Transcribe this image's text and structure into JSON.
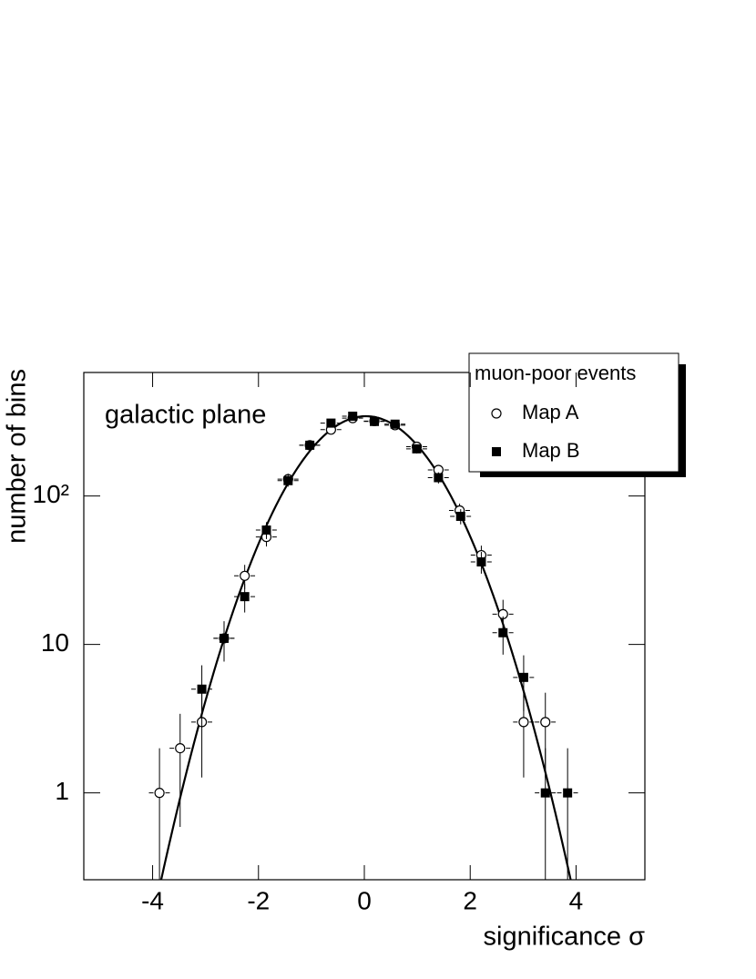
{
  "chart_data": {
    "type": "scatter",
    "annotation": "galactic plane",
    "x_label": "significance σ",
    "y_label": "number of bins",
    "legend_title": "muon-poor events",
    "legend": "top right",
    "log_y": true,
    "xlim": [
      -5.3,
      5.3
    ],
    "ylim": [
      0.26,
      680
    ],
    "xticks": [
      -4,
      -2,
      0,
      2,
      4
    ],
    "yticks": [
      1,
      10,
      {
        "value": 100,
        "label": "10²"
      }
    ],
    "x_error": 0.2,
    "fit": {
      "color": "#000000",
      "amplitude": 345,
      "mean": 0.03,
      "sigma": 1.02
    },
    "series": [
      {
        "name": "Map A",
        "marker": "circle",
        "color": "#000000",
        "x": [
          -3.87,
          -3.48,
          -3.07,
          -2.65,
          -2.26,
          -1.85,
          -1.44,
          -1.03,
          -0.63,
          -0.22,
          0.19,
          0.58,
          0.99,
          1.4,
          1.8,
          2.21,
          2.62,
          3.01,
          3.42
        ],
        "values": [
          1,
          2,
          3,
          11,
          29,
          53,
          130,
          220,
          280,
          335,
          320,
          300,
          215,
          150,
          80,
          40,
          16,
          3,
          3
        ],
        "errors": [
          1,
          1.41,
          1.73,
          3.32,
          5.39,
          7.28,
          11.4,
          14.8,
          16.7,
          18.3,
          17.9,
          17.3,
          14.7,
          12.2,
          8.94,
          6.32,
          4,
          1.73,
          1.73
        ]
      },
      {
        "name": "Map B",
        "marker": "square",
        "color": "#000000",
        "x": [
          -3.07,
          -2.65,
          -2.26,
          -1.85,
          -1.44,
          -1.03,
          -0.63,
          -0.22,
          0.19,
          0.58,
          0.99,
          1.4,
          1.82,
          2.21,
          2.62,
          3.01,
          3.42,
          3.84
        ],
        "values": [
          5,
          11,
          21,
          59,
          127,
          220,
          310,
          345,
          318,
          305,
          208,
          133,
          73,
          36,
          12,
          6,
          1,
          1
        ],
        "errors": [
          2.24,
          3.32,
          4.58,
          7.68,
          11.3,
          14.8,
          17.6,
          18.6,
          17.8,
          17.5,
          14.4,
          11.5,
          8.54,
          6,
          3.46,
          2.45,
          1,
          1
        ]
      }
    ]
  }
}
